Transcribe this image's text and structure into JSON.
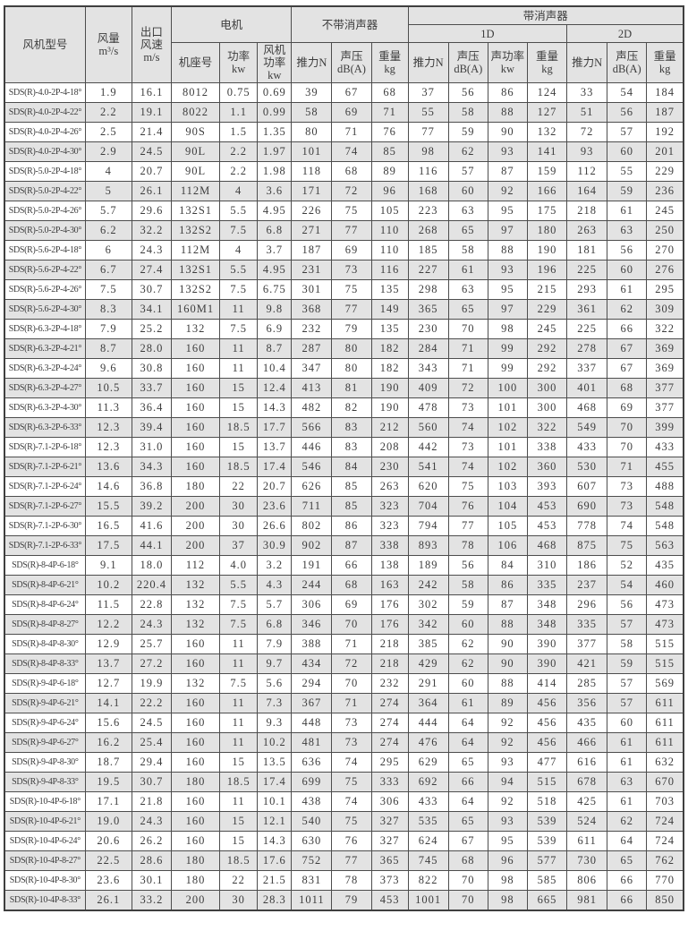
{
  "table": {
    "header": {
      "model": "风机型号",
      "airflow": "风量\nm³/s",
      "outlet_speed": "出口\n风速\nm/s",
      "motor_group": "电机",
      "frame": "机座号",
      "power": "功率\nkw",
      "fan_power": "风机\n功率\nkw",
      "no_silencer_group": "不带消声器",
      "silencer_group": "带消声器",
      "group_1d": "1D",
      "group_2d": "2D",
      "thrust": "推力N",
      "sound_pressure": "声压\ndB(A)",
      "sound_power": "声功率\nkw",
      "weight": "重量\nkg"
    },
    "rows": [
      [
        "SDS(R)-4.0-2P-4-18°",
        "1.9",
        "16.1",
        "8012",
        "0.75",
        "0.69",
        "39",
        "67",
        "68",
        "37",
        "56",
        "86",
        "124",
        "33",
        "54",
        "184"
      ],
      [
        "SDS(R)-4.0-2P-4-22°",
        "2.2",
        "19.1",
        "8022",
        "1.1",
        "0.99",
        "58",
        "69",
        "71",
        "55",
        "58",
        "88",
        "127",
        "51",
        "56",
        "187"
      ],
      [
        "SDS(R)-4.0-2P-4-26°",
        "2.5",
        "21.4",
        "90S",
        "1.5",
        "1.35",
        "80",
        "71",
        "76",
        "77",
        "59",
        "90",
        "132",
        "72",
        "57",
        "192"
      ],
      [
        "SDS(R)-4.0-2P-4-30°",
        "2.9",
        "24.5",
        "90L",
        "2.2",
        "1.97",
        "101",
        "74",
        "85",
        "98",
        "62",
        "93",
        "141",
        "93",
        "60",
        "201"
      ],
      [
        "SDS(R)-5.0-2P-4-18°",
        "4",
        "20.7",
        "90L",
        "2.2",
        "1.98",
        "118",
        "68",
        "89",
        "116",
        "57",
        "87",
        "159",
        "112",
        "55",
        "229"
      ],
      [
        "SDS(R)-5.0-2P-4-22°",
        "5",
        "26.1",
        "112M",
        "4",
        "3.6",
        "171",
        "72",
        "96",
        "168",
        "60",
        "92",
        "166",
        "164",
        "59",
        "236"
      ],
      [
        "SDS(R)-5.0-2P-4-26°",
        "5.7",
        "29.6",
        "132S1",
        "5.5",
        "4.95",
        "226",
        "75",
        "105",
        "223",
        "63",
        "95",
        "175",
        "218",
        "61",
        "245"
      ],
      [
        "SDS(R)-5.0-2P-4-30°",
        "6.2",
        "32.2",
        "132S2",
        "7.5",
        "6.8",
        "271",
        "77",
        "110",
        "268",
        "65",
        "97",
        "180",
        "263",
        "63",
        "250"
      ],
      [
        "SDS(R)-5.6-2P-4-18°",
        "6",
        "24.3",
        "112M",
        "4",
        "3.7",
        "187",
        "69",
        "110",
        "185",
        "58",
        "88",
        "190",
        "181",
        "56",
        "270"
      ],
      [
        "SDS(R)-5.6-2P-4-22°",
        "6.7",
        "27.4",
        "132S1",
        "5.5",
        "4.95",
        "231",
        "73",
        "116",
        "227",
        "61",
        "93",
        "196",
        "225",
        "60",
        "276"
      ],
      [
        "SDS(R)-5.6-2P-4-26°",
        "7.5",
        "30.7",
        "132S2",
        "7.5",
        "6.75",
        "301",
        "75",
        "135",
        "298",
        "63",
        "95",
        "215",
        "293",
        "61",
        "295"
      ],
      [
        "SDS(R)-5.6-2P-4-30°",
        "8.3",
        "34.1",
        "160M1",
        "11",
        "9.8",
        "368",
        "77",
        "149",
        "365",
        "65",
        "97",
        "229",
        "361",
        "62",
        "309"
      ],
      [
        "SDS(R)-6.3-2P-4-18°",
        "7.9",
        "25.2",
        "132",
        "7.5",
        "6.9",
        "232",
        "79",
        "135",
        "230",
        "70",
        "98",
        "245",
        "225",
        "66",
        "322"
      ],
      [
        "SDS(R)-6.3-2P-4-21°",
        "8.7",
        "28.0",
        "160",
        "11",
        "8.7",
        "287",
        "80",
        "182",
        "284",
        "71",
        "99",
        "292",
        "278",
        "67",
        "369"
      ],
      [
        "SDS(R)-6.3-2P-4-24°",
        "9.6",
        "30.8",
        "160",
        "11",
        "10.4",
        "347",
        "80",
        "182",
        "343",
        "71",
        "99",
        "292",
        "337",
        "67",
        "369"
      ],
      [
        "SDS(R)-6.3-2P-4-27°",
        "10.5",
        "33.7",
        "160",
        "15",
        "12.4",
        "413",
        "81",
        "190",
        "409",
        "72",
        "100",
        "300",
        "401",
        "68",
        "377"
      ],
      [
        "SDS(R)-6.3-2P-4-30°",
        "11.3",
        "36.4",
        "160",
        "15",
        "14.3",
        "482",
        "82",
        "190",
        "478",
        "73",
        "101",
        "300",
        "468",
        "69",
        "377"
      ],
      [
        "SDS(R)-6.3-2P-6-33°",
        "12.3",
        "39.4",
        "160",
        "18.5",
        "17.7",
        "566",
        "83",
        "212",
        "560",
        "74",
        "102",
        "322",
        "549",
        "70",
        "399"
      ],
      [
        "SDS(R)-7.1-2P-6-18°",
        "12.3",
        "31.0",
        "160",
        "15",
        "13.7",
        "446",
        "83",
        "208",
        "442",
        "73",
        "101",
        "338",
        "433",
        "70",
        "433"
      ],
      [
        "SDS(R)-7.1-2P-6-21°",
        "13.6",
        "34.3",
        "160",
        "18.5",
        "17.4",
        "546",
        "84",
        "230",
        "541",
        "74",
        "102",
        "360",
        "530",
        "71",
        "455"
      ],
      [
        "SDS(R)-7.1-2P-6-24°",
        "14.6",
        "36.8",
        "180",
        "22",
        "20.7",
        "626",
        "85",
        "263",
        "620",
        "75",
        "103",
        "393",
        "607",
        "73",
        "488"
      ],
      [
        "SDS(R)-7.1-2P-6-27°",
        "15.5",
        "39.2",
        "200",
        "30",
        "23.6",
        "711",
        "85",
        "323",
        "704",
        "76",
        "104",
        "453",
        "690",
        "73",
        "548"
      ],
      [
        "SDS(R)-7.1-2P-6-30°",
        "16.5",
        "41.6",
        "200",
        "30",
        "26.6",
        "802",
        "86",
        "323",
        "794",
        "77",
        "105",
        "453",
        "778",
        "74",
        "548"
      ],
      [
        "SDS(R)-7.1-2P-6-33°",
        "17.5",
        "44.1",
        "200",
        "37",
        "30.9",
        "902",
        "87",
        "338",
        "893",
        "78",
        "106",
        "468",
        "875",
        "75",
        "563"
      ],
      [
        "SDS(R)-8-4P-6-18°",
        "9.1",
        "18.0",
        "112",
        "4.0",
        "3.2",
        "191",
        "66",
        "138",
        "189",
        "56",
        "84",
        "310",
        "186",
        "52",
        "435"
      ],
      [
        "SDS(R)-8-4P-6-21°",
        "10.2",
        "220.4",
        "132",
        "5.5",
        "4.3",
        "244",
        "68",
        "163",
        "242",
        "58",
        "86",
        "335",
        "237",
        "54",
        "460"
      ],
      [
        "SDS(R)-8-4P-6-24°",
        "11.5",
        "22.8",
        "132",
        "7.5",
        "5.7",
        "306",
        "69",
        "176",
        "302",
        "59",
        "87",
        "348",
        "296",
        "56",
        "473"
      ],
      [
        "SDS(R)-8-4P-8-27°",
        "12.2",
        "24.3",
        "132",
        "7.5",
        "6.8",
        "346",
        "70",
        "176",
        "342",
        "60",
        "88",
        "348",
        "335",
        "57",
        "473"
      ],
      [
        "SDS(R)-8-4P-8-30°",
        "12.9",
        "25.7",
        "160",
        "11",
        "7.9",
        "388",
        "71",
        "218",
        "385",
        "62",
        "90",
        "390",
        "377",
        "58",
        "515"
      ],
      [
        "SDS(R)-8-4P-8-33°",
        "13.7",
        "27.2",
        "160",
        "11",
        "9.7",
        "434",
        "72",
        "218",
        "429",
        "62",
        "90",
        "390",
        "421",
        "59",
        "515"
      ],
      [
        "SDS(R)-9-4P-6-18°",
        "12.7",
        "19.9",
        "132",
        "7.5",
        "5.6",
        "294",
        "70",
        "232",
        "291",
        "60",
        "88",
        "414",
        "285",
        "57",
        "569"
      ],
      [
        "SDS(R)-9-4P-6-21°",
        "14.1",
        "22.2",
        "160",
        "11",
        "7.3",
        "367",
        "71",
        "274",
        "364",
        "61",
        "89",
        "456",
        "356",
        "57",
        "611"
      ],
      [
        "SDS(R)-9-4P-6-24°",
        "15.6",
        "24.5",
        "160",
        "11",
        "9.3",
        "448",
        "73",
        "274",
        "444",
        "64",
        "92",
        "456",
        "435",
        "60",
        "611"
      ],
      [
        "SDS(R)-9-4P-6-27°",
        "16.2",
        "25.4",
        "160",
        "11",
        "10.2",
        "481",
        "73",
        "274",
        "476",
        "64",
        "92",
        "456",
        "466",
        "61",
        "611"
      ],
      [
        "SDS(R)-9-4P-8-30°",
        "18.7",
        "29.4",
        "160",
        "15",
        "13.5",
        "636",
        "74",
        "295",
        "629",
        "65",
        "93",
        "477",
        "616",
        "61",
        "632"
      ],
      [
        "SDS(R)-9-4P-8-33°",
        "19.5",
        "30.7",
        "180",
        "18.5",
        "17.4",
        "699",
        "75",
        "333",
        "692",
        "66",
        "94",
        "515",
        "678",
        "63",
        "670"
      ],
      [
        "SDS(R)-10-4P-6-18°",
        "17.1",
        "21.8",
        "160",
        "11",
        "10.1",
        "438",
        "74",
        "306",
        "433",
        "64",
        "92",
        "518",
        "425",
        "61",
        "703"
      ],
      [
        "SDS(R)-10-4P-6-21°",
        "19.0",
        "24.3",
        "160",
        "15",
        "12.1",
        "540",
        "75",
        "327",
        "535",
        "65",
        "93",
        "539",
        "524",
        "62",
        "724"
      ],
      [
        "SDS(R)-10-4P-6-24°",
        "20.6",
        "26.2",
        "160",
        "15",
        "14.3",
        "630",
        "76",
        "327",
        "624",
        "67",
        "95",
        "539",
        "611",
        "64",
        "724"
      ],
      [
        "SDS(R)-10-4P-8-27°",
        "22.5",
        "28.6",
        "180",
        "18.5",
        "17.6",
        "752",
        "77",
        "365",
        "745",
        "68",
        "96",
        "577",
        "730",
        "65",
        "762"
      ],
      [
        "SDS(R)-10-4P-8-30°",
        "23.6",
        "30.1",
        "180",
        "22",
        "21.5",
        "831",
        "78",
        "373",
        "822",
        "70",
        "98",
        "585",
        "806",
        "66",
        "770"
      ],
      [
        "SDS(R)-10-4P-8-33°",
        "26.1",
        "33.2",
        "200",
        "30",
        "28.3",
        "1011",
        "79",
        "453",
        "1001",
        "70",
        "98",
        "665",
        "981",
        "66",
        "850"
      ]
    ]
  }
}
